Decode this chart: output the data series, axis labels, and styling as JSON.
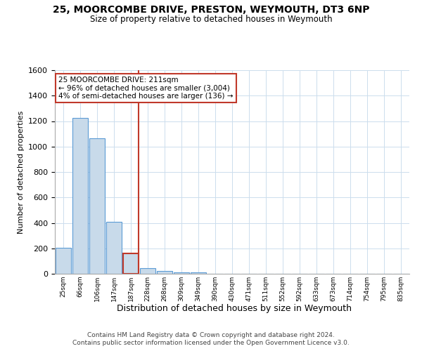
{
  "title": "25, MOORCOMBE DRIVE, PRESTON, WEYMOUTH, DT3 6NP",
  "subtitle": "Size of property relative to detached houses in Weymouth",
  "xlabel": "Distribution of detached houses by size in Weymouth",
  "ylabel": "Number of detached properties",
  "categories": [
    "25sqm",
    "66sqm",
    "106sqm",
    "147sqm",
    "187sqm",
    "228sqm",
    "268sqm",
    "309sqm",
    "349sqm",
    "390sqm",
    "430sqm",
    "471sqm",
    "511sqm",
    "552sqm",
    "592sqm",
    "633sqm",
    "673sqm",
    "714sqm",
    "754sqm",
    "795sqm",
    "835sqm"
  ],
  "values": [
    205,
    1225,
    1065,
    410,
    160,
    45,
    20,
    10,
    10,
    0,
    0,
    0,
    0,
    0,
    0,
    0,
    0,
    0,
    0,
    0,
    0
  ],
  "bar_color": "#c8daea",
  "bar_edge_color": "#5b9bd5",
  "highlight_index": 4,
  "highlight_bar_edge_color": "#c0392b",
  "vline_color": "#c0392b",
  "ylim": [
    0,
    1600
  ],
  "yticks": [
    0,
    200,
    400,
    600,
    800,
    1000,
    1200,
    1400,
    1600
  ],
  "annotation_text": "25 MOORCOMBE DRIVE: 211sqm\n← 96% of detached houses are smaller (3,004)\n4% of semi-detached houses are larger (136) →",
  "annotation_box_color": "#ffffff",
  "annotation_box_edge": "#c0392b",
  "footer1": "Contains HM Land Registry data © Crown copyright and database right 2024.",
  "footer2": "Contains public sector information licensed under the Open Government Licence v3.0.",
  "background_color": "#ffffff",
  "grid_color": "#ccdded"
}
